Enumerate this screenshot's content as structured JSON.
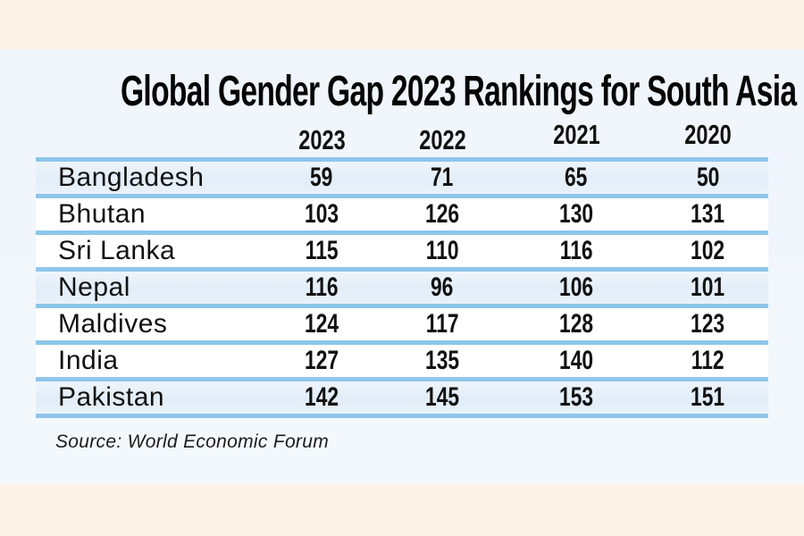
{
  "chart_data": {
    "type": "table",
    "title": "Global Gender Gap 2023 Rankings for South Asia",
    "columns": [
      "2023",
      "2022",
      "2021",
      "2020"
    ],
    "rows": [
      {
        "country": "Bangladesh",
        "values": [
          59,
          71,
          65,
          50
        ]
      },
      {
        "country": "Bhutan",
        "values": [
          103,
          126,
          130,
          131
        ]
      },
      {
        "country": "Sri Lanka",
        "values": [
          115,
          110,
          116,
          102
        ]
      },
      {
        "country": "Nepal",
        "values": [
          116,
          96,
          106,
          101
        ]
      },
      {
        "country": "Maldives",
        "values": [
          124,
          117,
          128,
          123
        ]
      },
      {
        "country": "India",
        "values": [
          127,
          135,
          140,
          112
        ]
      },
      {
        "country": "Pakistan",
        "values": [
          142,
          145,
          153,
          151
        ]
      }
    ],
    "source": "Source: World Economic Forum",
    "legend_position": "none",
    "grid": "horizontal-rules"
  },
  "colors": {
    "outer_background": "#fdf3e7",
    "panel_background": "#f2f7fc",
    "stripe_row": "#e5eff9",
    "rule_line": "#8dc6ea",
    "text": "#111111"
  }
}
